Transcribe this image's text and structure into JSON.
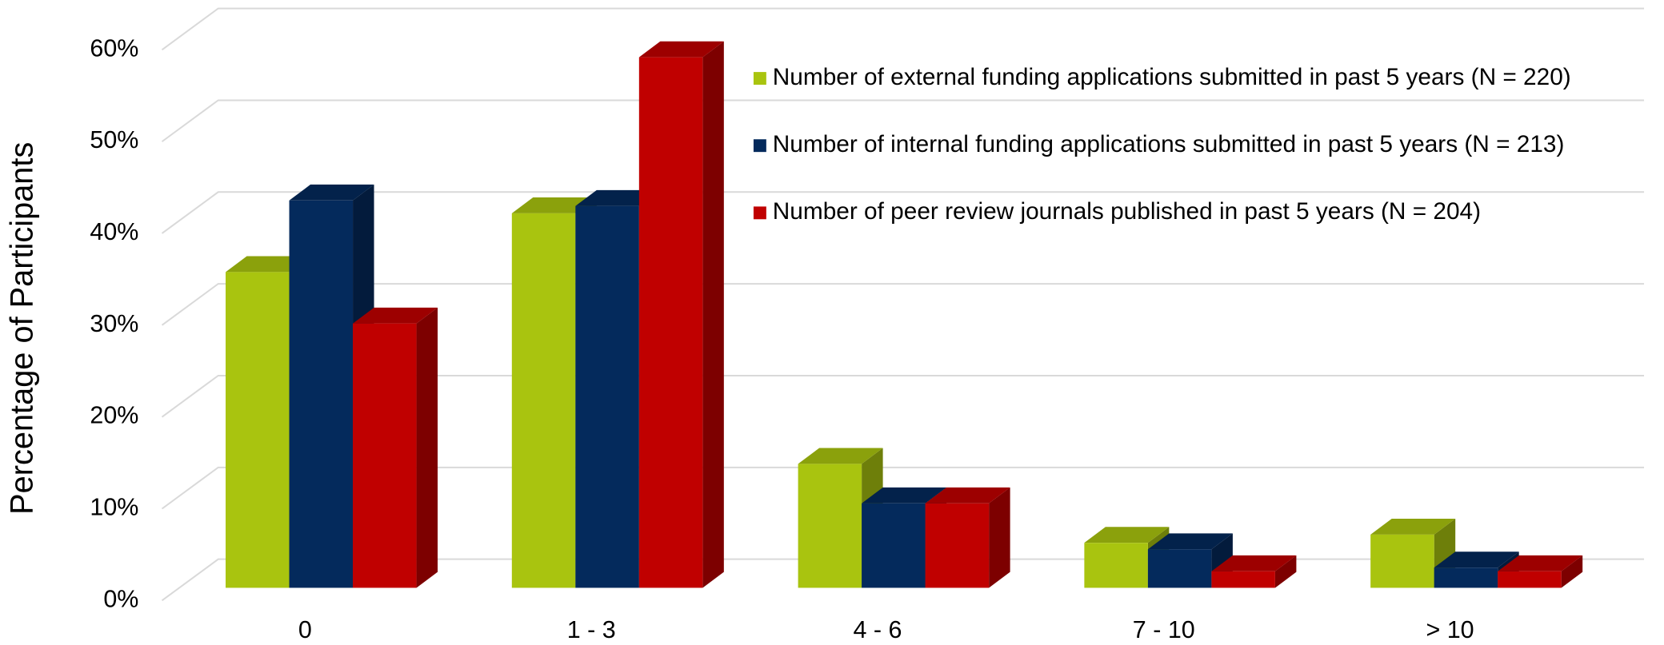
{
  "chart_data": {
    "type": "bar3d",
    "y_axis_label": "Percentage of Participants",
    "categories": [
      "0",
      "1 - 3",
      "4 - 6",
      "7 - 10",
      "> 10"
    ],
    "series": [
      {
        "name": "Number of external funding applications submitted in past 5 years (N = 220)",
        "color": "#a9c40f",
        "values": [
          34.4,
          40.8,
          13.5,
          4.9,
          5.8
        ]
      },
      {
        "name": "Number of internal funding applications submitted in past 5 years (N = 213)",
        "color": "#042a5c",
        "values": [
          42.2,
          41.6,
          9.2,
          4.2,
          2.2
        ]
      },
      {
        "name": "Number of peer review journals published in past 5 years (N = 204)",
        "color": "#c00000",
        "values": [
          28.8,
          57.8,
          9.2,
          1.8,
          1.8
        ]
      }
    ],
    "ylim": [
      0,
      60
    ],
    "yticks": [
      {
        "value": 0,
        "label": "0%"
      },
      {
        "value": 10,
        "label": "10%"
      },
      {
        "value": 20,
        "label": "20%"
      },
      {
        "value": 30,
        "label": "30%"
      },
      {
        "value": 40,
        "label": "40%"
      },
      {
        "value": 50,
        "label": "50%"
      },
      {
        "value": 60,
        "label": "60%"
      }
    ],
    "grid": true,
    "legend": "upper right"
  }
}
